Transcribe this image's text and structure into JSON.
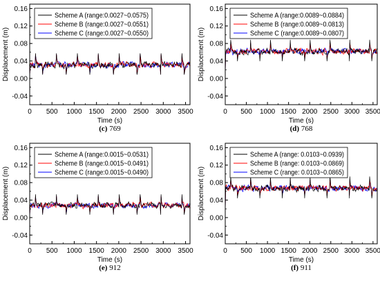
{
  "page": {
    "background": "#ffffff"
  },
  "colors": {
    "scheme_a": "#000000",
    "scheme_b": "#ff0000",
    "scheme_c": "#0000ff"
  },
  "chart_data": [
    {
      "type": "line",
      "caption_label": "(c)",
      "caption_number": "769",
      "xlabel": "Time (s)",
      "ylabel": "Displacement (m)",
      "xlim": [
        0,
        3600
      ],
      "ylim": [
        -0.06,
        0.17
      ],
      "xticks": [
        "0",
        "500",
        "1000",
        "1500",
        "2000",
        "2500",
        "3000",
        "3500"
      ],
      "yticks": [
        "-0.04",
        "0.00",
        "0.04",
        "0.08",
        "0.12",
        "0.16"
      ],
      "legend_position": "top-left",
      "grid": false,
      "series": [
        {
          "name": "Scheme A (range:0.0027~0.0575)",
          "color": "#000000",
          "min": 0.0027,
          "max": 0.0575,
          "mean": 0.031,
          "amp": 0.01
        },
        {
          "name": "Scheme B (range:0.0027~0.0551)",
          "color": "#ff0000",
          "min": 0.0027,
          "max": 0.0551,
          "mean": 0.031,
          "amp": 0.009
        },
        {
          "name": "Scheme C (range:0.0027~0.0550)",
          "color": "#0000ff",
          "min": 0.0027,
          "max": 0.055,
          "mean": 0.031,
          "amp": 0.009
        }
      ]
    },
    {
      "type": "line",
      "caption_label": "(d)",
      "caption_number": "768",
      "xlabel": "Time (s)",
      "ylabel": "Displacement (m)",
      "xlim": [
        0,
        3600
      ],
      "ylim": [
        -0.06,
        0.17
      ],
      "xticks": [
        "0",
        "500",
        "1000",
        "1500",
        "2000",
        "2500",
        "3000",
        "3500"
      ],
      "yticks": [
        "-0.04",
        "0.00",
        "0.04",
        "0.08",
        "0.12",
        "0.16"
      ],
      "legend_position": "top-left",
      "grid": false,
      "series": [
        {
          "name": "Scheme A (range:0.0089~0.0884)",
          "color": "#000000",
          "min": 0.0089,
          "max": 0.0884,
          "mean": 0.062,
          "amp": 0.01
        },
        {
          "name": "Scheme B (range:0.0089~0.0813)",
          "color": "#ff0000",
          "min": 0.0089,
          "max": 0.0813,
          "mean": 0.062,
          "amp": 0.009
        },
        {
          "name": "Scheme C (range:0.0089~0.0807)",
          "color": "#0000ff",
          "min": 0.0089,
          "max": 0.0807,
          "mean": 0.062,
          "amp": 0.009
        }
      ]
    },
    {
      "type": "line",
      "caption_label": "(e)",
      "caption_number": "912",
      "xlabel": "Time (s)",
      "ylabel": "Displacement (m)",
      "xlim": [
        0,
        3600
      ],
      "ylim": [
        -0.06,
        0.17
      ],
      "xticks": [
        "0",
        "500",
        "1000",
        "1500",
        "2000",
        "2500",
        "3000",
        "3500"
      ],
      "yticks": [
        "-0.04",
        "0.00",
        "0.04",
        "0.08",
        "0.12",
        "0.16"
      ],
      "legend_position": "top-left",
      "grid": false,
      "series": [
        {
          "name": "Scheme A (range:0.0015~0.0531)",
          "color": "#000000",
          "min": 0.0015,
          "max": 0.0531,
          "mean": 0.028,
          "amp": 0.009
        },
        {
          "name": "Scheme B (range:0.0015~0.0491)",
          "color": "#ff0000",
          "min": 0.0015,
          "max": 0.0491,
          "mean": 0.028,
          "amp": 0.009
        },
        {
          "name": "Scheme C (range:0.0015~0.0490)",
          "color": "#0000ff",
          "min": 0.0015,
          "max": 0.049,
          "mean": 0.028,
          "amp": 0.008
        }
      ]
    },
    {
      "type": "line",
      "caption_label": "(f)",
      "caption_number": "911",
      "xlabel": "Time (s)",
      "ylabel": "Displacement (m)",
      "xlim": [
        0,
        3600
      ],
      "ylim": [
        -0.06,
        0.17
      ],
      "xticks": [
        "0",
        "500",
        "1000",
        "1500",
        "2000",
        "2500",
        "3000",
        "3500"
      ],
      "yticks": [
        "-0.04",
        "0.00",
        "0.04",
        "0.08",
        "0.12",
        "0.16"
      ],
      "legend_position": "top-left",
      "grid": false,
      "series": [
        {
          "name": "Scheme A (range: 0.0103~0.0939)",
          "color": "#000000",
          "min": 0.0103,
          "max": 0.0939,
          "mean": 0.067,
          "amp": 0.01
        },
        {
          "name": "Scheme B (range: 0.0103~0.0869)",
          "color": "#ff0000",
          "min": 0.0103,
          "max": 0.0869,
          "mean": 0.067,
          "amp": 0.009
        },
        {
          "name": "Scheme C (range: 0.0103~0.0865)",
          "color": "#0000ff",
          "min": 0.0103,
          "max": 0.0865,
          "mean": 0.067,
          "amp": 0.009
        }
      ]
    }
  ]
}
